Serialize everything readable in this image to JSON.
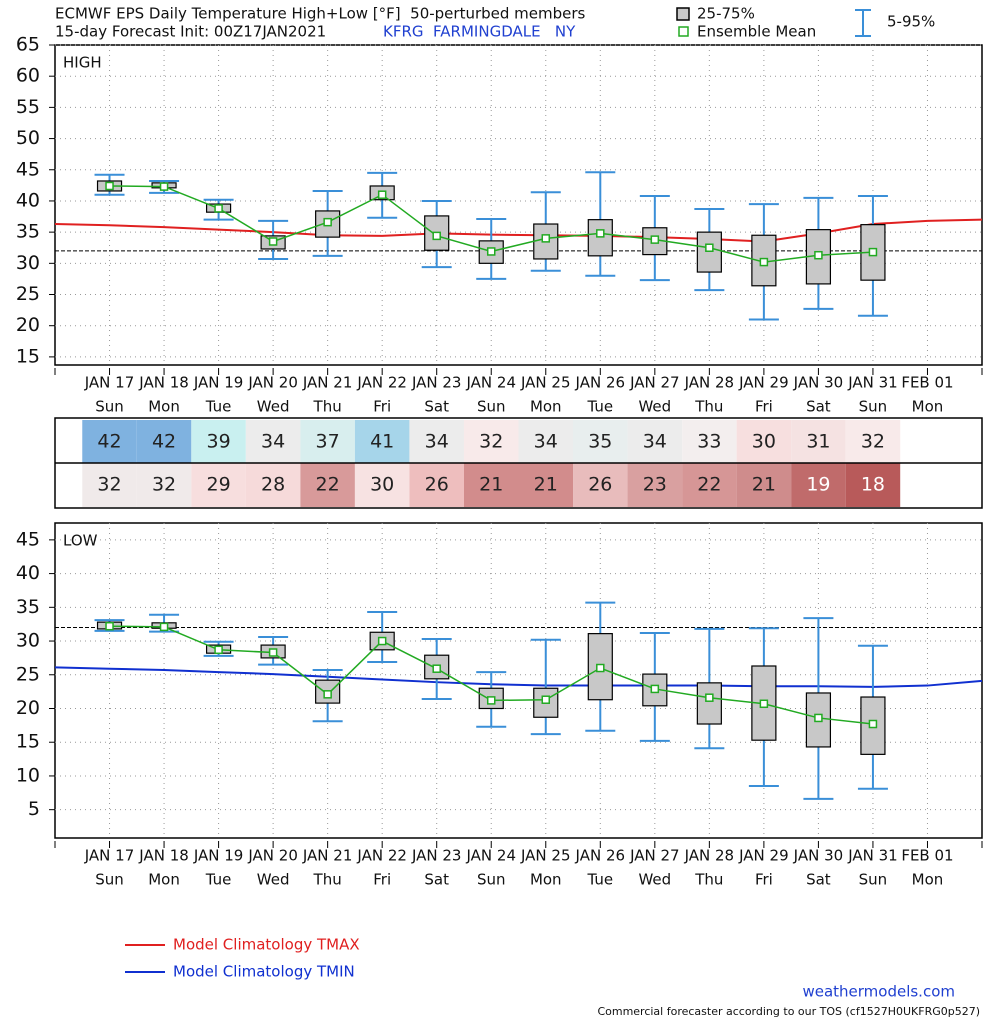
{
  "header": {
    "title": "ECMWF EPS Daily Temperature High+Low [°F]  50-perturbed members",
    "subtitle": "15-day Forecast Init: 00Z17JAN2021",
    "station": "KFRG  FARMINGDALE   NY"
  },
  "legend": {
    "box": "25-75%",
    "mean": "Ensemble Mean",
    "whisker": "5-95%"
  },
  "chart_data": [
    {
      "type": "box",
      "title": "HIGH",
      "categories": [
        null,
        "JAN 17",
        "JAN 18",
        "JAN 19",
        "JAN 20",
        "JAN 21",
        "JAN 22",
        "JAN 23",
        "JAN 24",
        "JAN 25",
        "JAN 26",
        "JAN 27",
        "JAN 28",
        "JAN 29",
        "JAN 30",
        "JAN 31",
        "FEB 01",
        null
      ],
      "weekdays": [
        null,
        "Sun",
        "Mon",
        "Tue",
        "Wed",
        "Thu",
        "Fri",
        "Sat",
        "Sun",
        "Mon",
        "Tue",
        "Wed",
        "Thu",
        "Fri",
        "Sat",
        "Sun",
        "Mon",
        null
      ],
      "p95": [
        null,
        44.2,
        43.2,
        40.2,
        36.8,
        41.6,
        44.5,
        40,
        37.1,
        41.4,
        44.6,
        40.8,
        38.7,
        39.5,
        40.5,
        40.8,
        null,
        null
      ],
      "p75": [
        null,
        43.2,
        42.9,
        39.5,
        34.4,
        38.4,
        42.4,
        37.6,
        33.6,
        36.3,
        37,
        35.7,
        35,
        34.5,
        35.4,
        36.2,
        null,
        null
      ],
      "mean": [
        null,
        42.4,
        42.3,
        38.8,
        33.5,
        36.6,
        41,
        34.4,
        31.9,
        34,
        34.8,
        33.8,
        32.5,
        30.2,
        31.3,
        31.8,
        null,
        null
      ],
      "p25": [
        null,
        41.6,
        42.1,
        38.2,
        32.3,
        34.2,
        40.2,
        32.1,
        30,
        30.7,
        31.2,
        31.4,
        28.6,
        26.4,
        26.7,
        27.3,
        null,
        null
      ],
      "p5": [
        null,
        41,
        41.3,
        37,
        30.7,
        31.2,
        37.3,
        29.4,
        27.5,
        28.8,
        28,
        27.3,
        25.7,
        21,
        22.7,
        21.6,
        null,
        null
      ],
      "box_color": "#c8c8c8",
      "whisker_color": "#3a8fd8",
      "mean_color": "#22aa22",
      "climatology": {
        "name": "Model Climatology TMAX",
        "color": "#e02020",
        "values": [
          36.3,
          36.1,
          35.8,
          35.4,
          35,
          34.5,
          34.4,
          34.8,
          34.6,
          34.5,
          34.4,
          34.2,
          33.9,
          33.5,
          34.8,
          36.3,
          36.8,
          37
        ]
      },
      "reference_line": 32,
      "ylim": [
        13.7,
        65
      ],
      "yticks": [
        15,
        20,
        25,
        30,
        35,
        40,
        45,
        50,
        55,
        60,
        65
      ],
      "grid": true
    },
    {
      "type": "box",
      "title": "LOW",
      "categories": [
        null,
        "JAN 17",
        "JAN 18",
        "JAN 19",
        "JAN 20",
        "JAN 21",
        "JAN 22",
        "JAN 23",
        "JAN 24",
        "JAN 25",
        "JAN 26",
        "JAN 27",
        "JAN 28",
        "JAN 29",
        "JAN 30",
        "JAN 31",
        "FEB 01",
        null
      ],
      "weekdays": [
        null,
        "Sun",
        "Mon",
        "Tue",
        "Wed",
        "Thu",
        "Fri",
        "Sat",
        "Sun",
        "Mon",
        "Tue",
        "Wed",
        "Thu",
        "Fri",
        "Sat",
        "Sun",
        "Mon",
        null
      ],
      "p95": [
        null,
        33.1,
        33.9,
        29.9,
        30.6,
        25.7,
        34.3,
        30.3,
        25.4,
        30.2,
        35.7,
        31.2,
        31.8,
        31.9,
        33.4,
        29.3,
        null,
        null
      ],
      "p75": [
        null,
        32.8,
        32.7,
        29.4,
        29.4,
        24.2,
        31.3,
        27.9,
        23,
        23,
        31.1,
        25.1,
        23.8,
        26.3,
        22.3,
        21.7,
        null,
        null
      ],
      "mean": [
        null,
        32.2,
        32.1,
        28.7,
        28.3,
        22.1,
        30,
        25.9,
        21.2,
        21.3,
        26,
        22.9,
        21.6,
        20.7,
        18.6,
        17.7,
        null,
        null
      ],
      "p25": [
        null,
        31.8,
        31.9,
        28.2,
        27.5,
        20.8,
        28.7,
        24.4,
        20,
        18.7,
        21.3,
        20.4,
        17.7,
        15.3,
        14.3,
        13.2,
        null,
        null
      ],
      "p5": [
        null,
        31.5,
        31.4,
        27.8,
        26.5,
        18.1,
        26.9,
        21.4,
        17.3,
        16.2,
        16.7,
        15.2,
        14.1,
        8.5,
        6.6,
        8.1,
        null,
        null
      ],
      "box_color": "#c8c8c8",
      "whisker_color": "#3a8fd8",
      "mean_color": "#22aa22",
      "climatology": {
        "name": "Model Climatology TMIN",
        "color": "#1030d0",
        "values": [
          26.1,
          25.9,
          25.7,
          25.4,
          25.1,
          24.7,
          24.3,
          23.9,
          23.6,
          23.4,
          23.4,
          23.4,
          23.4,
          23.3,
          23.3,
          23.2,
          23.4,
          24.1
        ]
      },
      "reference_line": 32,
      "ylim": [
        0.8,
        47.5
      ],
      "yticks": [
        5,
        10,
        15,
        20,
        25,
        30,
        35,
        40,
        45
      ],
      "grid": true
    }
  ],
  "table": {
    "rows": [
      [
        42,
        42,
        39,
        34,
        37,
        41,
        34,
        32,
        34,
        35,
        34,
        33,
        30,
        31,
        32
      ],
      [
        32,
        32,
        29,
        28,
        22,
        30,
        26,
        21,
        21,
        26,
        23,
        22,
        21,
        19,
        18
      ]
    ],
    "colors": [
      [
        "#7fb2e0",
        "#7fb2e0",
        "#c9f0f0",
        "#ececec",
        "#d8eeee",
        "#a6d5ea",
        "#ececec",
        "#f8eaea",
        "#ececec",
        "#e8eeee",
        "#ececec",
        "#f3eeee",
        "#f7dfdf",
        "#f5e2e2",
        "#f8eaea"
      ],
      [
        "#f0eaea",
        "#f0eaea",
        "#f7dede",
        "#f6dada",
        "#d89a9a",
        "#f7e2e2",
        "#eebebe",
        "#d28c8c",
        "#d28c8c",
        "#e8bcbc",
        "#d9a0a0",
        "#d69696",
        "#cf8c8c",
        "#c06b6b",
        "#b85a5a"
      ]
    ]
  },
  "footer": {
    "site": "weathermodels.com",
    "note": "Commercial forecaster according to our TOS (cf1527H0UKFRG0p527)"
  }
}
